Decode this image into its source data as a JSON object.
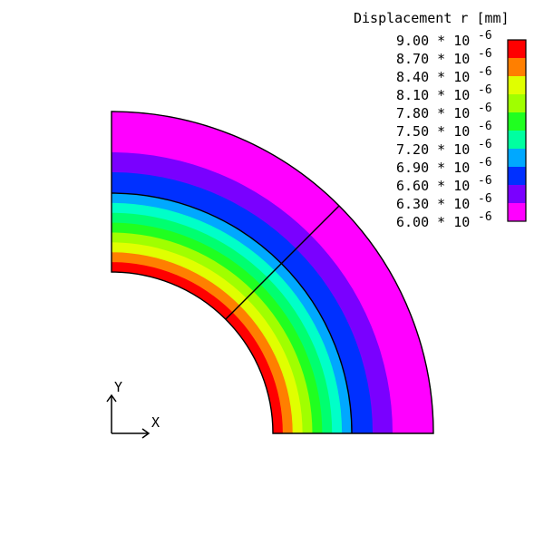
{
  "legend": {
    "title": "Displacement r [mm]",
    "multiplier": "* 10",
    "exponent": "-6",
    "levels": [
      {
        "value": "9.00",
        "color": "#ff0000"
      },
      {
        "value": "8.70",
        "color": "#ff7f00"
      },
      {
        "value": "8.40",
        "color": "#e0ff00"
      },
      {
        "value": "8.10",
        "color": "#a0ff00"
      },
      {
        "value": "7.80",
        "color": "#20ff20"
      },
      {
        "value": "7.50",
        "color": "#00ffa0"
      },
      {
        "value": "7.20",
        "color": "#00a8ff"
      },
      {
        "value": "6.90",
        "color": "#0030ff"
      },
      {
        "value": "6.60",
        "color": "#7a00ff"
      },
      {
        "value": "6.30",
        "color": "#ff00ff"
      },
      {
        "value": "6.00",
        "color": ""
      }
    ]
  },
  "axes": {
    "x_label": "X",
    "y_label": "Y"
  },
  "inner_ring_bands": [
    "#ff0000",
    "#ff7f00",
    "#e0ff00",
    "#a0ff00",
    "#20ff20",
    "#00ff70",
    "#00ffc8",
    "#00a8ff"
  ],
  "outer_ring_bands": [
    "#0030ff",
    "#7a00ff",
    "#ff00ff"
  ]
}
